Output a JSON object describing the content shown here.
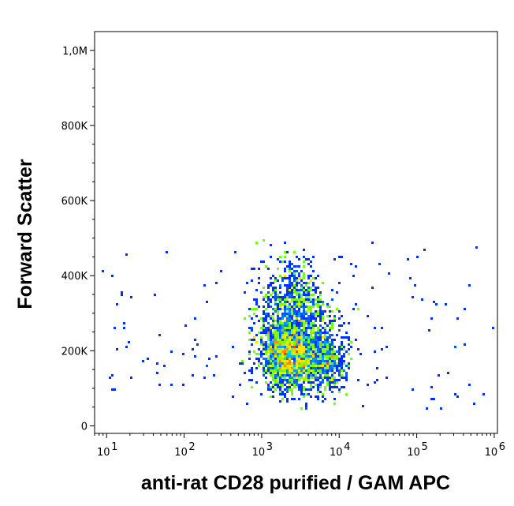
{
  "chart_data": {
    "type": "scatter",
    "style": "density dot plot (pseudocolor, blue→cyan→green→yellow→red)",
    "xlabel": "anti-rat CD28 purified / GAM APC",
    "ylabel": "Forward Scatter",
    "x_scale": "log",
    "xlim": [
      7,
      1100000
    ],
    "y_scale": "linear",
    "ylim": [
      -20000,
      1050000
    ],
    "x_ticks": [
      {
        "value": 10,
        "base": "10",
        "exp": "1"
      },
      {
        "value": 100,
        "base": "10",
        "exp": "2"
      },
      {
        "value": 1000,
        "base": "10",
        "exp": "3"
      },
      {
        "value": 10000,
        "base": "10",
        "exp": "4"
      },
      {
        "value": 100000,
        "base": "10",
        "exp": "5"
      },
      {
        "value": 1000000,
        "base": "10",
        "exp": "6"
      }
    ],
    "y_ticks": [
      {
        "value": 0,
        "label": "0"
      },
      {
        "value": 200000,
        "label": "200K"
      },
      {
        "value": 400000,
        "label": "400K"
      },
      {
        "value": 600000,
        "label": "600K"
      },
      {
        "value": 800000,
        "label": "800K"
      },
      {
        "value": 1000000,
        "label": "1,0M"
      }
    ],
    "populations": [
      {
        "x_center": 2300,
        "y_center": 185000,
        "x_spread_decades": 0.22,
        "y_spread": 60000,
        "weight": 0.45,
        "color": "#ff0000"
      },
      {
        "x_center": 6500,
        "y_center": 170000,
        "x_spread_decades": 0.2,
        "y_spread": 50000,
        "weight": 0.15,
        "color": "#7cff00"
      },
      {
        "x_center": 2500,
        "y_center": 330000,
        "x_spread_decades": 0.25,
        "y_spread": 80000,
        "weight": 0.12,
        "color": "#00d8ff"
      },
      {
        "x_center": 3000,
        "y_center": 250000,
        "x_spread_decades": 0.4,
        "y_spread": 110000,
        "weight": 0.28,
        "color": "#0000ff"
      }
    ],
    "y_min_event": 40000,
    "grid": false,
    "legend": "none"
  }
}
